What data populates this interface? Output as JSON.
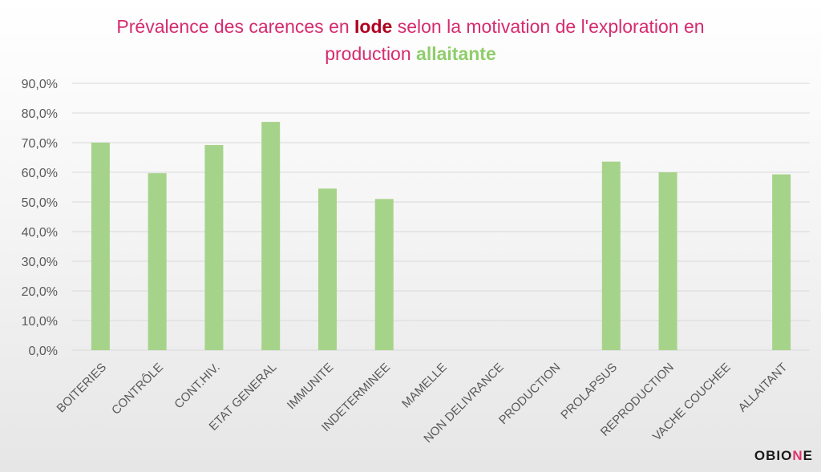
{
  "title": {
    "part1": "Prévalence des carences en ",
    "highlight1": "Iode",
    "part2": " selon la motivation de l'exploration en",
    "part3": "production ",
    "highlight2": "allaitante"
  },
  "logo": {
    "prefix": "OBIO",
    "accent": "N",
    "suffix": "E"
  },
  "colors": {
    "bar": "#a6d38a",
    "grid": "#d9d9d9",
    "tick_text": "#595959",
    "title": "#d62b6f"
  },
  "chart_data": {
    "type": "bar",
    "categories": [
      "BOITERIES",
      "CONTRÔLE",
      "CONT.HIV.",
      "ETAT GENERAL",
      "IMMUNITE",
      "INDETERMINEE",
      "MAMELLE",
      "NON DELIVRANCE",
      "PRODUCTION",
      "PROLAPSUS",
      "REPRODUCTION",
      "VACHE COUCHEE",
      "ALLAITANT"
    ],
    "values": [
      70.0,
      59.7,
      69.2,
      77.0,
      54.5,
      51.0,
      0,
      0,
      0,
      63.6,
      60.0,
      0,
      59.3
    ],
    "ylim": [
      0,
      90
    ],
    "ytick_step": 10,
    "ytick_labels": [
      "0,0%",
      "10,0%",
      "20,0%",
      "30,0%",
      "40,0%",
      "50,0%",
      "60,0%",
      "70,0%",
      "80,0%",
      "90,0%"
    ],
    "grid": true,
    "legend": "none"
  }
}
